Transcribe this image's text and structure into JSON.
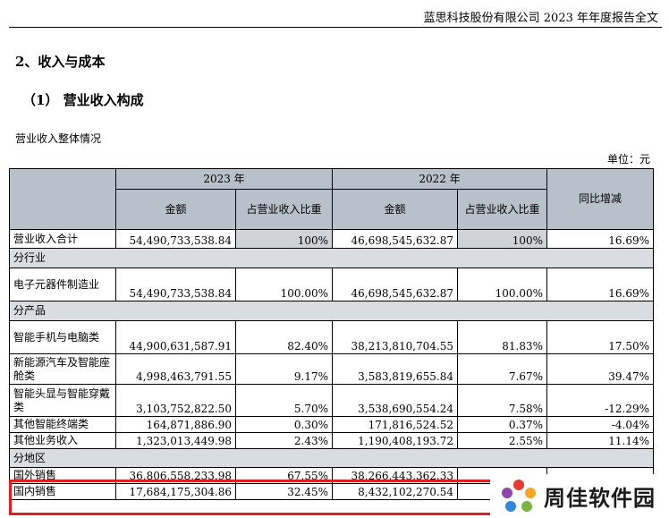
{
  "header": {
    "title": "蓝思科技股份有限公司 2023 年年度报告全文"
  },
  "section": {
    "heading": "2、收入与成本",
    "subheading": "（1） 营业收入构成",
    "subtitle": "营业收入整体情况",
    "unit": "单位：元"
  },
  "table": {
    "year_a": "2023 年",
    "year_b": "2022 年",
    "col_amount": "金额",
    "col_ratio": "占营业收入比重",
    "col_yoy": "同比增减",
    "total": {
      "label": "营业收入合计",
      "amount_2023": "54,490,733,538.84",
      "ratio_2023": "100%",
      "amount_2022": "46,698,545,632.87",
      "ratio_2022": "100%",
      "yoy": "16.69%"
    },
    "sec_industry": "分行业",
    "industry": [
      {
        "label": "电子元器件制造业",
        "amount_2023": "54,490,733,538.84",
        "ratio_2023": "100.00%",
        "amount_2022": "46,698,545,632.87",
        "ratio_2022": "100.00%",
        "yoy": "16.69%"
      }
    ],
    "sec_product": "分产品",
    "product": [
      {
        "label": "智能手机与电脑类",
        "amount_2023": "44,900,631,587.91",
        "ratio_2023": "82.40%",
        "amount_2022": "38,213,810,704.55",
        "ratio_2022": "81.83%",
        "yoy": "17.50%"
      },
      {
        "label": "新能源汽车及智能座舱类",
        "amount_2023": "4,998,463,791.55",
        "ratio_2023": "9.17%",
        "amount_2022": "3,583,819,655.84",
        "ratio_2022": "7.67%",
        "yoy": "39.47%"
      },
      {
        "label": "智能头显与智能穿戴类",
        "amount_2023": "3,103,752,822.50",
        "ratio_2023": "5.70%",
        "amount_2022": "3,538,690,554.24",
        "ratio_2022": "7.58%",
        "yoy": "-12.29%"
      },
      {
        "label": "其他智能终端类",
        "amount_2023": "164,871,886.90",
        "ratio_2023": "0.30%",
        "amount_2022": "171,816,524.52",
        "ratio_2022": "0.37%",
        "yoy": "-4.04%"
      },
      {
        "label": "其他业务收入",
        "amount_2023": "1,323,013,449.98",
        "ratio_2023": "2.43%",
        "amount_2022": "1,190,408,193.72",
        "ratio_2022": "2.55%",
        "yoy": "11.14%"
      }
    ],
    "sec_region": "分地区",
    "region": [
      {
        "label": "国外销售",
        "amount_2023": "36,806,558,233.98",
        "ratio_2023": "67.55%",
        "amount_2022": "38,266,443,362.33"
      },
      {
        "label": "国内销售",
        "amount_2023": "17,684,175,304.86",
        "ratio_2023": "32.45%",
        "amount_2022": "8,432,102,270.54"
      }
    ]
  },
  "watermark": {
    "text": "周佳软件园"
  },
  "colors": {
    "header_fill": "#b8c0ca",
    "section_fill": "#d9dde1",
    "highlight": "#e02020"
  }
}
